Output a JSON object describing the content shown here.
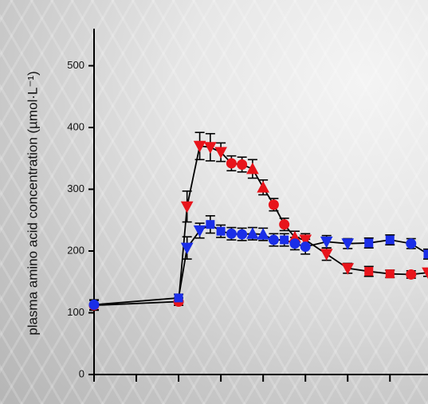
{
  "chart_data": {
    "type": "line",
    "y_label": "plasma amino acid concentration (µmol·L⁻¹)",
    "x": [
      0,
      2,
      2.2,
      2.5,
      2.75,
      3,
      3.25,
      3.5,
      3.75,
      4,
      4.25,
      4.5,
      4.75,
      5,
      5.5,
      6,
      6.5,
      7,
      7.5,
      7.9
    ],
    "series": [
      {
        "color": "#e8141b",
        "values": [
          112,
          118,
          272,
          370,
          368,
          360,
          342,
          340,
          333,
          303,
          275,
          243,
          222,
          218,
          195,
          172,
          167,
          163,
          162,
          165
        ],
        "errors": [
          8,
          6,
          25,
          22,
          22,
          15,
          12,
          12,
          15,
          12,
          10,
          10,
          10,
          10,
          10,
          8,
          8,
          6,
          6,
          6
        ]
      },
      {
        "color": "#1a2ee8",
        "values": [
          113,
          124,
          205,
          233,
          243,
          232,
          228,
          227,
          228,
          227,
          218,
          218,
          212,
          207,
          215,
          212,
          213,
          218,
          212,
          195
        ],
        "errors": [
          8,
          6,
          18,
          12,
          14,
          10,
          10,
          10,
          10,
          10,
          10,
          10,
          10,
          12,
          10,
          8,
          8,
          8,
          8,
          8
        ]
      }
    ],
    "xlim": [
      0,
      7.9
    ],
    "xticks": [
      0,
      1,
      2,
      3,
      4,
      5,
      6,
      7
    ],
    "ylim": [
      0,
      560
    ],
    "yticks": [
      0,
      100,
      200,
      300,
      400,
      500
    ]
  }
}
